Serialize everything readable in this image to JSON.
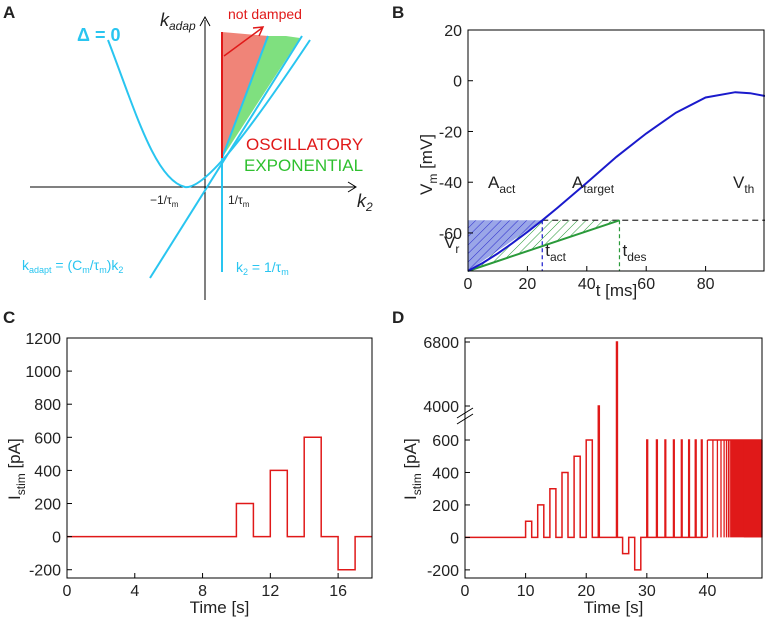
{
  "panels": {
    "A": "A",
    "B": "B",
    "C": "C",
    "D": "D"
  },
  "panelA": {
    "delta_label": "Δ = 0",
    "y_axis": "k",
    "y_axis_sub": "adap",
    "x_axis": "k",
    "x_axis_sub": "2",
    "not_damped": "not damped",
    "oscillatory": "OSCILLATORY",
    "exponential": "EXPONENTIAL",
    "neg_tick": "−1/τ",
    "neg_tick_sub": "m",
    "pos_tick": "1/τ",
    "pos_tick_sub": "m",
    "line_eq1_a": "k",
    "line_eq1_a_sub": "adapt",
    "line_eq1_b": " = (C",
    "line_eq1_b_sub": "m",
    "line_eq1_c": "/τ",
    "line_eq1_c_sub": "m",
    "line_eq1_d": ")k",
    "line_eq1_d_sub": "2",
    "line_eq2_a": "k",
    "line_eq2_a_sub": "2",
    "line_eq2_b": " = 1/τ",
    "line_eq2_b_sub": "m",
    "colors": {
      "curve": "#29c5f0",
      "osc": "#f08478",
      "exp": "#7fe07f",
      "red": "#e01919"
    }
  },
  "panelB": {
    "ylabel": "V",
    "ylabel_sub": "m",
    "ylabel_unit": " [mV]",
    "xlabel": "t [ms]",
    "a_act": "A",
    "a_act_sub": "act",
    "a_target": "A",
    "a_target_sub": "target",
    "v_th": "V",
    "v_th_sub": "th",
    "v_r": "V",
    "v_r_sub": "r",
    "t_act": "t",
    "t_act_sub": "act",
    "t_des": "t",
    "t_des_sub": "des",
    "colors": {
      "trace": "#1a1acc",
      "target": "#2a9a3a"
    }
  },
  "panelC": {
    "ylabel": "I",
    "ylabel_sub": "stim",
    "ylabel_unit": " [pA]",
    "xlabel": "Time [s]"
  },
  "panelD": {
    "ylabel": "I",
    "ylabel_sub": "stim",
    "ylabel_unit": " [pA]",
    "xlabel": "Time [s]"
  },
  "chart_data": [
    {
      "id": "B",
      "type": "line",
      "xlabel": "t [ms]",
      "ylabel": "Vm [mV]",
      "xlim": [
        0,
        100
      ],
      "ylim": [
        -75,
        20
      ],
      "x_ticks": [
        0,
        20,
        40,
        60,
        80
      ],
      "y_ticks": [
        20,
        0,
        -20,
        -40,
        -60
      ],
      "v_th": -55,
      "v_r": -75,
      "t_act": 25,
      "t_des": 51,
      "series": [
        {
          "name": "Vm",
          "x": [
            0,
            5,
            10,
            15,
            20,
            25,
            30,
            40,
            50,
            60,
            70,
            80,
            90,
            95,
            100
          ],
          "y": [
            -75,
            -71.8,
            -68.1,
            -64,
            -59.6,
            -55,
            -50.2,
            -40.2,
            -30,
            -20.8,
            -12.6,
            -6.6,
            -4.5,
            -4.9,
            -6
          ]
        },
        {
          "name": "target",
          "x": [
            0,
            51
          ],
          "y": [
            -75,
            -55
          ]
        }
      ]
    },
    {
      "id": "C",
      "type": "line",
      "xlabel": "Time [s]",
      "ylabel": "Istim [pA]",
      "xlim": [
        0,
        18
      ],
      "ylim": [
        -250,
        1200
      ],
      "x_ticks": [
        0,
        4,
        8,
        12,
        16
      ],
      "y_ticks": [
        -200,
        0,
        200,
        400,
        600,
        800,
        1000,
        1200
      ],
      "series": [
        {
          "name": "Istim",
          "x": [
            0,
            10,
            10,
            11,
            11,
            12,
            12,
            13,
            13,
            14,
            14,
            15,
            15,
            16,
            16,
            17,
            17,
            18
          ],
          "y": [
            0,
            0,
            200,
            200,
            0,
            0,
            400,
            400,
            0,
            0,
            600,
            600,
            0,
            0,
            -200,
            -200,
            0,
            0
          ]
        }
      ]
    },
    {
      "id": "D",
      "type": "line",
      "xlabel": "Time [s]",
      "ylabel": "Istim [pA]",
      "xlim": [
        0,
        49
      ],
      "ylim": [
        -250,
        6800
      ],
      "x_ticks": [
        0,
        10,
        20,
        30,
        40
      ],
      "y_ticks": [
        -200,
        0,
        200,
        400,
        600,
        4000,
        6800
      ],
      "axis_break": "between 600 and 4000",
      "pulses": [
        {
          "start": 10,
          "end": 11,
          "amp": 100
        },
        {
          "start": 12,
          "end": 13,
          "amp": 200
        },
        {
          "start": 14,
          "end": 15,
          "amp": 300
        },
        {
          "start": 16,
          "end": 17,
          "amp": 400
        },
        {
          "start": 18,
          "end": 19,
          "amp": 500
        },
        {
          "start": 20,
          "end": 21,
          "amp": 600
        },
        {
          "start": 22,
          "end": 22.15,
          "amp": 4000
        },
        {
          "start": 25,
          "end": 25.15,
          "amp": 6800
        },
        {
          "start": 26,
          "end": 27,
          "amp": -100
        },
        {
          "start": 28,
          "end": 29,
          "amp": -200
        }
      ],
      "spikes": {
        "amp": 600,
        "times": [
          30,
          31.6,
          33,
          34.4,
          35.7,
          36.9,
          38,
          39
        ]
      },
      "dense_train": {
        "amp": 600,
        "start": 40,
        "end": 49
      }
    }
  ]
}
